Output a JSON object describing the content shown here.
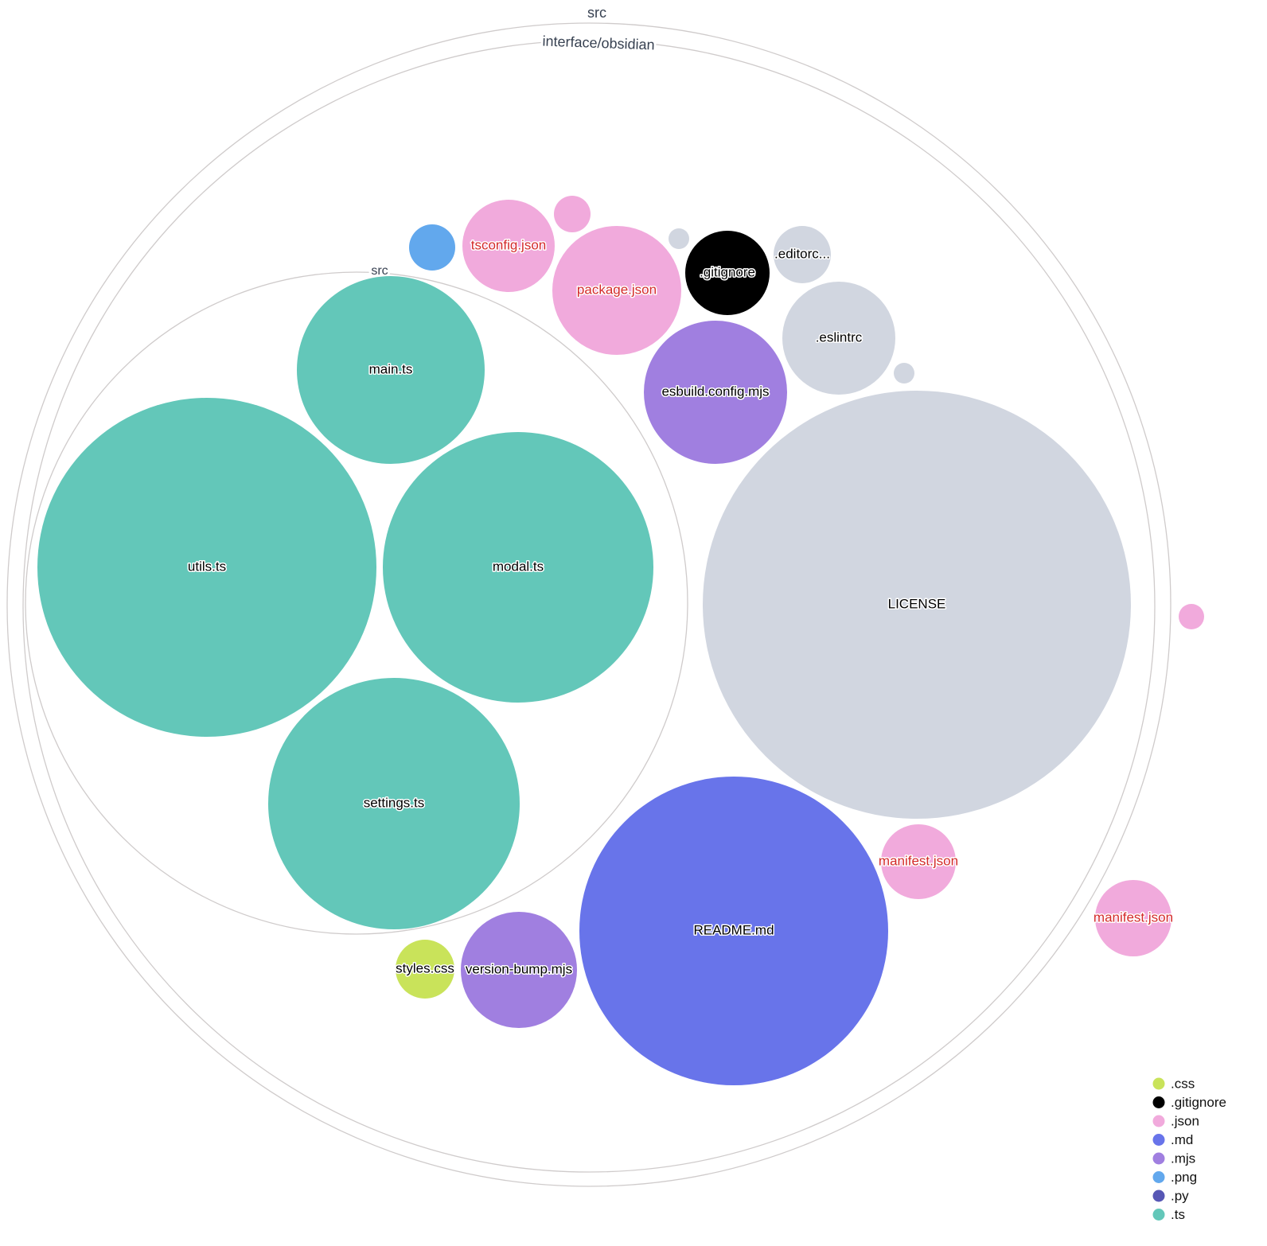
{
  "folders": [
    {
      "name": "src"
    },
    {
      "name": "interface/obsidian"
    },
    {
      "name": "src"
    }
  ],
  "files": [
    {
      "label": "main.ts",
      "ext": ".ts"
    },
    {
      "label": "utils.ts",
      "ext": ".ts"
    },
    {
      "label": "modal.ts",
      "ext": ".ts"
    },
    {
      "label": "settings.ts",
      "ext": ".ts"
    },
    {
      "label": "LICENSE",
      "ext": ""
    },
    {
      "label": "README.md",
      "ext": ".md"
    },
    {
      "label": "esbuild.config.mjs",
      "ext": ".mjs"
    },
    {
      "label": ".eslintrc",
      "ext": ""
    },
    {
      "label": ".gitignore",
      "ext": ".gitignore"
    },
    {
      "label": ".editorc...",
      "ext": ""
    },
    {
      "label": "package.json",
      "ext": ".json"
    },
    {
      "label": "tsconfig.json",
      "ext": ".json"
    },
    {
      "label": "",
      "ext": ".json"
    },
    {
      "label": "",
      "ext": ".png"
    },
    {
      "label": "",
      "ext": ""
    },
    {
      "label": "",
      "ext": ""
    },
    {
      "label": "manifest.json",
      "ext": ".json"
    },
    {
      "label": "manifest.json",
      "ext": ".json"
    },
    {
      "label": "",
      "ext": ".json"
    },
    {
      "label": "version-bump.mjs",
      "ext": ".mjs"
    },
    {
      "label": "styles.css",
      "ext": ".css"
    }
  ],
  "colors": {
    ".css": "#c9e35a",
    ".gitignore": "#000000",
    ".json": "#f1aadc",
    ".md": "#6874ea",
    ".mjs": "#a07fe0",
    ".png": "#62a8ed",
    ".py": "#5757b5",
    ".ts": "#63c7b9",
    "": "#d1d6e0",
    "json_label": "#d42a2a"
  },
  "legend": [
    {
      "label": ".css",
      "ext": ".css"
    },
    {
      "label": ".gitignore",
      "ext": ".gitignore"
    },
    {
      "label": ".json",
      "ext": ".json"
    },
    {
      "label": ".md",
      "ext": ".md"
    },
    {
      "label": ".mjs",
      "ext": ".mjs"
    },
    {
      "label": ".png",
      "ext": ".png"
    },
    {
      "label": ".py",
      "ext": ".py"
    },
    {
      "label": ".ts",
      "ext": ".ts"
    }
  ]
}
